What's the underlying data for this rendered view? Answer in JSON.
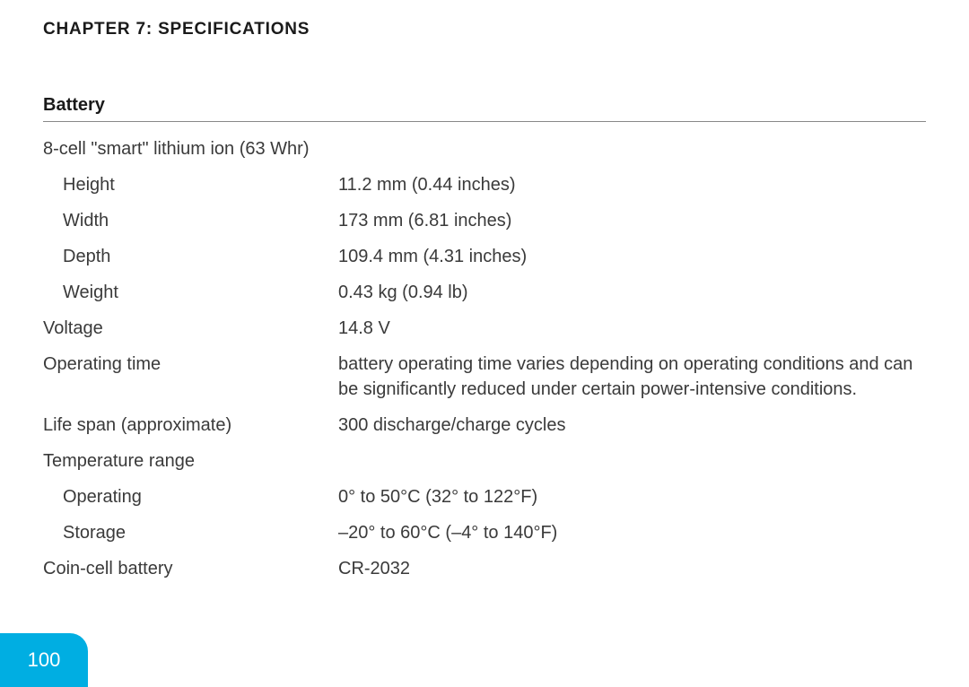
{
  "header": {
    "chapter_title": "CHAPTER 7: SPECIFICATIONS"
  },
  "section": {
    "title": "Battery"
  },
  "specs": {
    "battery_type": "8-cell \"smart\" lithium ion (63 Whr)",
    "height_label": "Height",
    "height_value": "11.2 mm (0.44 inches)",
    "width_label": "Width",
    "width_value": "173 mm (6.81 inches)",
    "depth_label": "Depth",
    "depth_value": "109.4 mm (4.31 inches)",
    "weight_label": "Weight",
    "weight_value": "0.43 kg (0.94 lb)",
    "voltage_label": "Voltage",
    "voltage_value": "14.8 V",
    "optime_label": "Operating time",
    "optime_value": "battery operating time varies depending on operating conditions and can be significantly reduced under certain power-intensive conditions.",
    "lifespan_label": "Life span (approximate)",
    "lifespan_value": "300 discharge/charge cycles",
    "temprange_label": "Temperature range",
    "tempop_label": "Operating",
    "tempop_value": "0° to 50°C (32° to 122°F)",
    "tempstore_label": "Storage",
    "tempstore_value": "–20° to 60°C (–4° to 140°F)",
    "coincell_label": "Coin-cell battery",
    "coincell_value": "CR-2032"
  },
  "page_number": "100",
  "colors": {
    "tab_bg": "#00aee2",
    "text_body": "#3a3a3a",
    "text_header": "#1a1a1a",
    "hr": "#888888",
    "page_bg": "#ffffff"
  }
}
